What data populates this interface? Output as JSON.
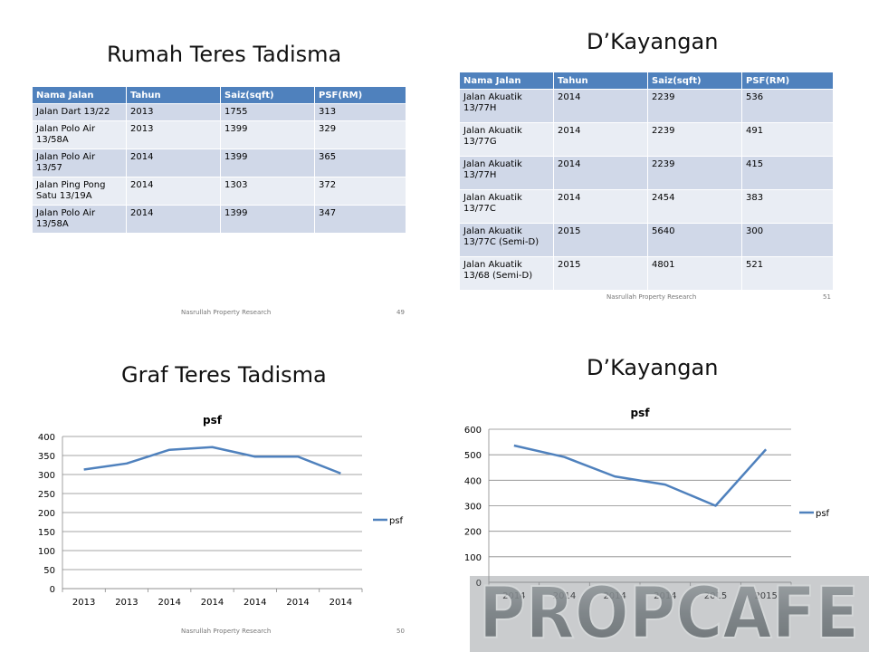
{
  "slide1": {
    "title": "Rumah Teres Tadisma",
    "headers": [
      "Nama Jalan",
      "Tahun",
      "Saiz(sqft)",
      "PSF(RM)"
    ],
    "rows": [
      [
        "Jalan Dart 13/22",
        "2013",
        "1755",
        "313"
      ],
      [
        "Jalan Polo Air 13/58A",
        "2013",
        "1399",
        "329"
      ],
      [
        "Jalan Polo Air 13/57",
        "2014",
        "1399",
        "365"
      ],
      [
        "Jalan Ping Pong Satu 13/19A",
        "2014",
        "1303",
        "372"
      ],
      [
        "Jalan Polo Air 13/58A",
        "2014",
        "1399",
        "347"
      ]
    ],
    "footer": "Nasrullah Property Research",
    "page": "49"
  },
  "slide2": {
    "title": "D’Kayangan",
    "headers": [
      "Nama Jalan",
      "Tahun",
      "Saiz(sqft)",
      "PSF(RM)"
    ],
    "rows": [
      [
        "Jalan Akuatik 13/77H",
        "2014",
        "2239",
        "536"
      ],
      [
        "Jalan Akuatik 13/77G",
        "2014",
        "2239",
        "491"
      ],
      [
        "Jalan Akuatik 13/77H",
        "2014",
        "2239",
        "415"
      ],
      [
        "Jalan Akuatik 13/77C",
        "2014",
        "2454",
        "383"
      ],
      [
        "Jalan Akuatik 13/77C (Semi-D)",
        "2015",
        "5640",
        "300"
      ],
      [
        "Jalan Akuatik 13/68 (Semi-D)",
        "2015",
        "4801",
        "521"
      ]
    ],
    "footer": "Nasrullah Property Research",
    "page": "51"
  },
  "slide3": {
    "title": "Graf Teres Tadisma",
    "footer": "Nasrullah Property Research",
    "page": "50"
  },
  "slide4": {
    "title": "D’Kayangan"
  },
  "watermark": "PROPCAFE",
  "colors": {
    "header": "#4f81bd",
    "line": "#4f81bd",
    "row_dark": "#d0d8e8",
    "row_light": "#e9edf4"
  },
  "chart_data": [
    {
      "type": "line",
      "title": "psf",
      "categories": [
        "2013",
        "2013",
        "2014",
        "2014",
        "2014",
        "2014",
        "2014"
      ],
      "series": [
        {
          "name": "psf",
          "values": [
            313,
            329,
            365,
            372,
            347,
            347,
            303
          ]
        }
      ],
      "ylim": [
        0,
        400
      ],
      "yticks": [
        "0",
        "50",
        "100",
        "150",
        "200",
        "250",
        "300",
        "350",
        "400"
      ],
      "grid": true,
      "legend": "right"
    },
    {
      "type": "line",
      "title": "psf",
      "categories": [
        "2014",
        "2014",
        "2014",
        "2014",
        "2015",
        "2015"
      ],
      "series": [
        {
          "name": "psf",
          "values": [
            536,
            491,
            415,
            383,
            300,
            521
          ]
        }
      ],
      "ylim": [
        0,
        600
      ],
      "yticks": [
        "0",
        "100",
        "200",
        "300",
        "400",
        "500",
        "600"
      ],
      "grid": true,
      "legend": "right"
    }
  ]
}
